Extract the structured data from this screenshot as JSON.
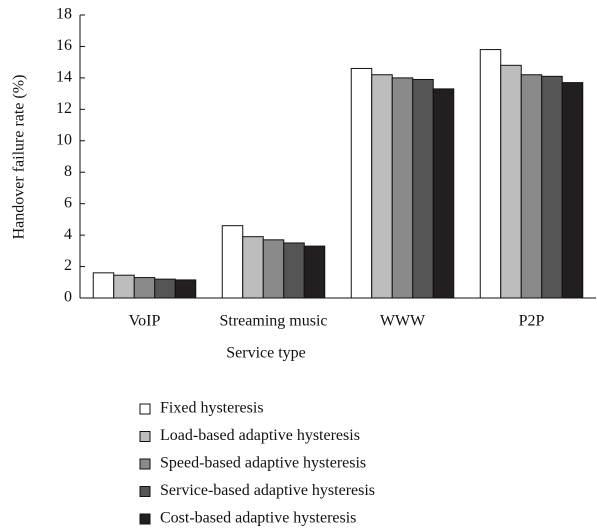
{
  "chart_data": {
    "type": "bar",
    "xlabel": "Service type",
    "ylabel": "Handover failure rate (%)",
    "categories": [
      "VoIP",
      "Streaming music",
      "WWW",
      "P2P"
    ],
    "series": [
      {
        "name": "Fixed hysteresis",
        "color": "#ffffff",
        "values": [
          1.6,
          4.6,
          14.6,
          15.8
        ]
      },
      {
        "name": "Load-based adaptive hysteresis",
        "color": "#bdbdbd",
        "values": [
          1.45,
          3.9,
          14.2,
          14.8
        ]
      },
      {
        "name": "Speed-based adaptive hysteresis",
        "color": "#8a8a8a",
        "values": [
          1.3,
          3.7,
          14.0,
          14.2
        ]
      },
      {
        "name": "Service-based adaptive hysteresis",
        "color": "#555555",
        "values": [
          1.2,
          3.5,
          13.9,
          14.1
        ]
      },
      {
        "name": "Cost-based adaptive hysteresis",
        "color": "#231f20",
        "values": [
          1.15,
          3.3,
          13.3,
          13.7
        ]
      }
    ],
    "ylim": [
      0,
      18
    ],
    "yticks": [
      0,
      2,
      4,
      6,
      8,
      10,
      12,
      14,
      16,
      18
    ]
  }
}
